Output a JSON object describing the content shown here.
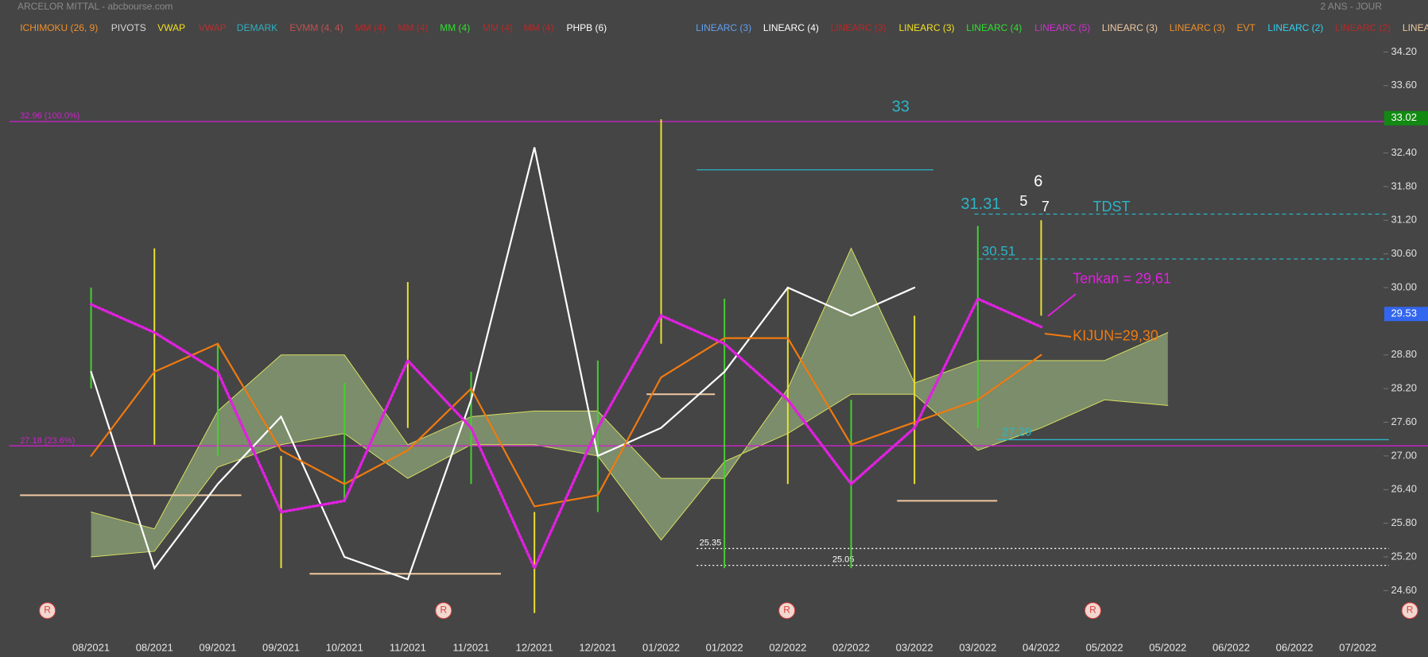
{
  "chart_data": {
    "type": "line",
    "title": "ARCELOR MITTAL - abcbourse.com",
    "period": "2 ANS - JOUR",
    "indicators": [
      {
        "text": "ICHIMOKU (26, 9)",
        "color": "#f0902a"
      },
      {
        "text": "PIVOTS",
        "color": "#d8d8d8"
      },
      {
        "text": "VWAP",
        "color": "#f0e020"
      },
      {
        "text": "VWAP",
        "color": "#b83030"
      },
      {
        "text": "DEMARK",
        "color": "#30b0c0"
      },
      {
        "text": "EVMM (4, 4)",
        "color": "#c05050"
      },
      {
        "text": "MM (4)",
        "color": "#b82828"
      },
      {
        "text": "MM (4)",
        "color": "#b82828"
      },
      {
        "text": "MM (4)",
        "color": "#30e030"
      },
      {
        "text": "MM (4)",
        "color": "#b82828"
      },
      {
        "text": "MM (4)",
        "color": "#b82828"
      },
      {
        "text": "PHPB (6)",
        "color": "#ffffff"
      },
      {
        "text": "LINEARC (3)",
        "color": "#60a0f0"
      },
      {
        "text": "LINEARC (4)",
        "color": "#ffffff"
      },
      {
        "text": "LINEARC (3)",
        "color": "#b82828"
      },
      {
        "text": "LINEARC (3)",
        "color": "#f0e020"
      },
      {
        "text": "LINEARC (4)",
        "color": "#30e030"
      },
      {
        "text": "LINEARC (5)",
        "color": "#d030d0"
      },
      {
        "text": "LINEARC (3)",
        "color": "#f0c8a0"
      },
      {
        "text": "LINEARC (3)",
        "color": "#f0902a"
      },
      {
        "text": "EVT",
        "color": "#f0902a"
      },
      {
        "text": "LINEARC (2)",
        "color": "#30d0f0"
      },
      {
        "text": "LINEARC (2)",
        "color": "#b82828"
      },
      {
        "text": "LINEA",
        "color": "#f0c8a0"
      }
    ],
    "categories": [
      "08/2021",
      "08/2021",
      "09/2021",
      "09/2021",
      "10/2021",
      "11/2021",
      "11/2021",
      "12/2021",
      "12/2021",
      "01/2022",
      "01/2022",
      "02/2022",
      "02/2022",
      "03/2022",
      "03/2022",
      "04/2022",
      "05/2022",
      "05/2022",
      "06/2022",
      "06/2022",
      "07/2022"
    ],
    "bars": {
      "color": "#44d030",
      "high": [
        30.0,
        30.7,
        29.0,
        27.0,
        28.3,
        30.1,
        28.5,
        26.0,
        28.7,
        33.0,
        29.8,
        30.0,
        28.0,
        29.5,
        31.1,
        31.2,
        null,
        null,
        null,
        null,
        null
      ],
      "low": [
        28.2,
        27.2,
        27.0,
        25.0,
        26.2,
        27.5,
        26.5,
        24.2,
        26.0,
        29.0,
        25.0,
        26.5,
        25.0,
        26.5,
        27.5,
        29.5,
        null,
        null,
        null,
        null,
        null
      ]
    },
    "series": [
      {
        "color": "#ffffff",
        "style": "solid",
        "values": [
          28.5,
          25.0,
          26.5,
          27.7,
          25.2,
          24.8,
          28.0,
          32.5,
          27.0,
          27.5,
          28.5,
          30.0,
          29.5,
          30.0,
          null,
          null,
          null,
          null,
          null,
          null,
          null
        ]
      },
      {
        "color": "#f07a10",
        "style": "solid",
        "values": [
          27.0,
          28.5,
          29.0,
          27.1,
          26.5,
          27.1,
          28.2,
          26.1,
          26.3,
          28.4,
          29.1,
          29.1,
          27.2,
          27.6,
          28.0,
          28.8,
          null,
          null,
          null,
          null,
          null
        ]
      },
      {
        "color": "#e020e0",
        "style": "dotted",
        "values": [
          29.7,
          29.2,
          28.5,
          26.0,
          26.2,
          28.7,
          27.5,
          25.0,
          27.5,
          29.5,
          29.0,
          28.0,
          26.5,
          27.5,
          29.8,
          29.3,
          null,
          null,
          null,
          null,
          null
        ]
      }
    ],
    "cloud": {
      "color": "#a8c888",
      "edge": "#d8e060",
      "span_a": [
        26.0,
        25.7,
        27.8,
        28.8,
        28.8,
        27.2,
        27.7,
        27.8,
        27.8,
        26.6,
        26.6,
        28.2,
        30.7,
        28.3,
        28.7,
        28.7,
        28.7,
        29.2,
        null,
        null,
        null
      ],
      "span_b": [
        25.2,
        25.3,
        26.8,
        27.2,
        27.4,
        26.6,
        27.2,
        27.2,
        27.0,
        25.5,
        26.9,
        27.4,
        28.1,
        28.1,
        27.1,
        27.5,
        28.0,
        27.9,
        null,
        null,
        null
      ]
    },
    "levels": [
      {
        "value": 32.96,
        "label": "32.96 (100.0%)",
        "color": "#d020d0",
        "style": "solid"
      },
      {
        "value": 27.18,
        "label": "27.18 (23.6%)",
        "color": "#d020d0",
        "style": "solid"
      },
      {
        "value": 32.1,
        "color": "#2bb5c8",
        "style": "solid"
      },
      {
        "value": 31.31,
        "label": "31.31",
        "color": "#2bb5c8",
        "style": "dashed"
      },
      {
        "value": 30.51,
        "label": "30.51",
        "color": "#2bb5c8",
        "style": "dashed"
      },
      {
        "value": 27.29,
        "label": "27.29",
        "color": "#2bb5c8",
        "style": "solid"
      },
      {
        "value": 25.35,
        "label": "25.35",
        "color": "#ffffff",
        "style": "dotted"
      },
      {
        "value": 25.05,
        "label": "25.05",
        "color": "#ffffff",
        "style": "dotted"
      },
      {
        "value": 26.3,
        "color": "#f0c8a0",
        "style": "solid"
      },
      {
        "value": 24.9,
        "color": "#f0c8a0",
        "style": "solid"
      },
      {
        "value": 26.2,
        "color": "#f0c8a0",
        "style": "solid"
      },
      {
        "value": 28.1,
        "color": "#f0c8a0",
        "style": "solid"
      }
    ],
    "annotations": [
      {
        "text": "33",
        "color": "#2bb5c8"
      },
      {
        "text": "6",
        "color": "#ffffff"
      },
      {
        "text": "5",
        "color": "#ffffff"
      },
      {
        "text": "7",
        "color": "#ffffff"
      },
      {
        "text": "TDST",
        "color": "#2bb5c8"
      },
      {
        "text": "Tenkan = 29,61",
        "color": "#e020e0"
      },
      {
        "text": "KIJUN=29,30",
        "color": "#f07a10"
      },
      {
        "text": "R",
        "color": "#e04040"
      },
      {
        "text": "R",
        "color": "#e04040"
      },
      {
        "text": "R",
        "color": "#e04040"
      },
      {
        "text": "R",
        "color": "#e04040"
      },
      {
        "text": "R",
        "color": "#e04040"
      }
    ],
    "price_marks": [
      {
        "value": 33.02,
        "color": "#128a12"
      },
      {
        "value": 29.53,
        "color": "#3366ee"
      }
    ],
    "ylim": [
      23.94,
      34.39
    ],
    "yticks": [
      {
        "value": 24.6,
        "label": "24.60"
      },
      {
        "value": 25.2,
        "label": "25.20"
      },
      {
        "value": 25.8,
        "label": "25.80"
      },
      {
        "value": 26.4,
        "label": "26.40"
      },
      {
        "value": 27.0,
        "label": "27.00"
      },
      {
        "value": 27.6,
        "label": "27.60"
      },
      {
        "value": 28.2,
        "label": "28.20"
      },
      {
        "value": 28.8,
        "label": "28.80"
      },
      {
        "value": 30.0,
        "label": "30.00"
      },
      {
        "value": 30.6,
        "label": "30.60"
      },
      {
        "value": 31.2,
        "label": "31.20"
      },
      {
        "value": 31.8,
        "label": "31.80"
      },
      {
        "value": 32.4,
        "label": "32.40"
      },
      {
        "value": 33.6,
        "label": "33.60"
      },
      {
        "value": 34.2,
        "label": "34.20"
      }
    ]
  }
}
